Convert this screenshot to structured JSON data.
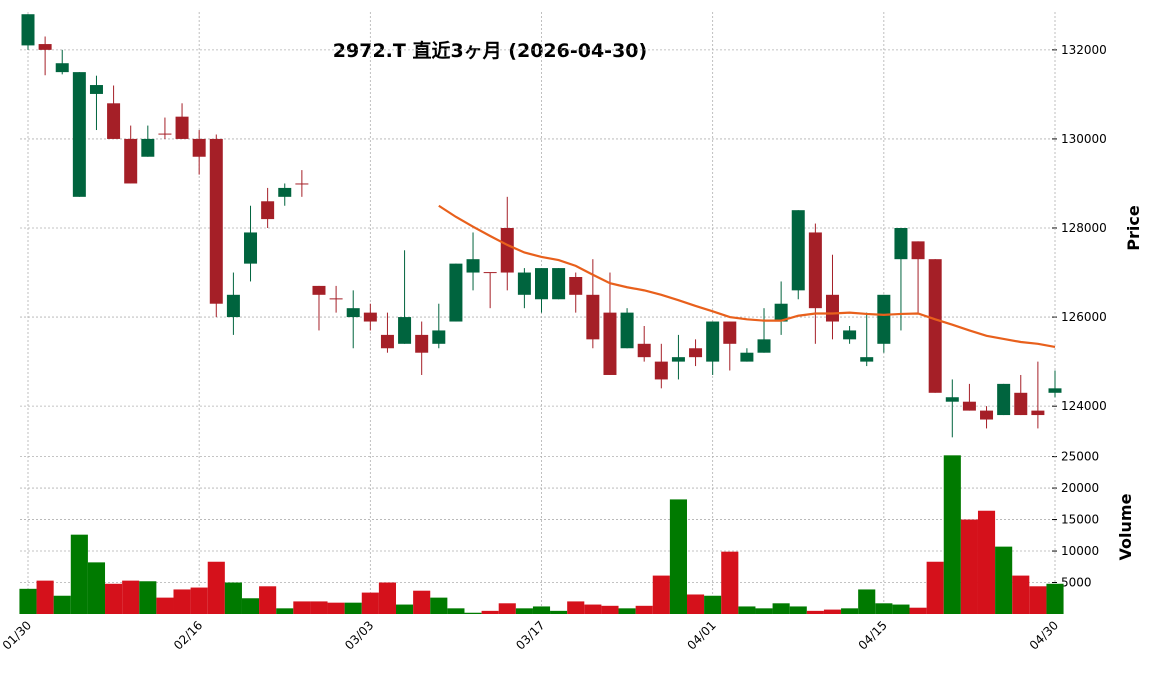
{
  "chart_data": {
    "type": "candlestick",
    "title": "2972.T 直近3ヶ月 (2026-04-30)",
    "ylabel": "Price",
    "y2label": "Volume",
    "categories": [
      "01/30",
      null,
      null,
      null,
      null,
      null,
      null,
      null,
      null,
      null,
      "02/16",
      null,
      null,
      null,
      null,
      null,
      null,
      null,
      null,
      null,
      "03/03",
      null,
      null,
      null,
      null,
      null,
      null,
      null,
      null,
      null,
      "03/17",
      null,
      null,
      null,
      null,
      null,
      null,
      null,
      null,
      null,
      "04/01",
      null,
      null,
      null,
      null,
      null,
      null,
      null,
      null,
      null,
      "04/15",
      null,
      null,
      null,
      null,
      null,
      null,
      null,
      null,
      null,
      "04/30"
    ],
    "open": [
      132100,
      132130,
      131500,
      128700,
      131010,
      130800,
      130000,
      129600,
      130120,
      130500,
      130000,
      130000,
      126000,
      127200,
      128600,
      128700,
      129000,
      126700,
      126420,
      126000,
      126100,
      125600,
      125400,
      125600,
      125400,
      125900,
      127000,
      127010,
      128000,
      126500,
      126400,
      126400,
      126900,
      126500,
      126100,
      125300,
      125400,
      125000,
      125000,
      125300,
      125000,
      125900,
      125000,
      125200,
      125900,
      126600,
      127900,
      126500,
      125500,
      125000,
      125400,
      127300,
      127700,
      127300,
      124100,
      124100,
      123900,
      123800,
      124300,
      123900,
      124300
    ],
    "high": [
      132800,
      132300,
      132000,
      131500,
      131420,
      131200,
      130300,
      130300,
      130480,
      130800,
      130200,
      130100,
      127000,
      128500,
      128900,
      129000,
      129300,
      126700,
      126700,
      126600,
      126300,
      126100,
      127500,
      125900,
      126300,
      127200,
      127900,
      127000,
      128700,
      127100,
      127100,
      127100,
      127000,
      127300,
      127000,
      126200,
      125800,
      125400,
      125600,
      125500,
      125900,
      125900,
      125300,
      126200,
      126800,
      128400,
      128100,
      127400,
      125800,
      126100,
      126500,
      128000,
      127700,
      127300,
      124600,
      124500,
      124000,
      124500,
      124700,
      125000,
      124800
    ],
    "low": [
      132000,
      131430,
      131450,
      128700,
      130200,
      130000,
      129000,
      129600,
      130000,
      130000,
      129200,
      126000,
      125600,
      126800,
      128000,
      128500,
      128700,
      125700,
      126100,
      125300,
      125700,
      125200,
      125400,
      124700,
      125300,
      125900,
      126600,
      126200,
      126600,
      126200,
      126100,
      126400,
      126100,
      125300,
      124700,
      125300,
      125000,
      124400,
      124600,
      124900,
      124700,
      124800,
      125000,
      125200,
      125600,
      126400,
      125400,
      125500,
      125400,
      124900,
      125200,
      125700,
      126100,
      124300,
      123300,
      123900,
      123500,
      123800,
      123800,
      123500,
      124200
    ],
    "close": [
      132800,
      132000,
      131700,
      131500,
      131210,
      130000,
      129000,
      130000,
      130100,
      130000,
      129600,
      126300,
      126500,
      127900,
      128200,
      128900,
      128990,
      126500,
      126400,
      126200,
      125900,
      125300,
      126000,
      125200,
      125700,
      127200,
      127300,
      127000,
      127000,
      127000,
      127100,
      127100,
      126500,
      125500,
      124700,
      126100,
      125100,
      124600,
      125100,
      125100,
      125900,
      125400,
      125200,
      125500,
      126300,
      128400,
      126200,
      125900,
      125700,
      125100,
      126500,
      128000,
      127300,
      124300,
      124200,
      123900,
      123700,
      124500,
      123800,
      123800,
      124400
    ],
    "ma": [
      null,
      null,
      null,
      null,
      null,
      null,
      null,
      null,
      null,
      null,
      null,
      null,
      null,
      null,
      null,
      null,
      null,
      null,
      null,
      null,
      null,
      null,
      null,
      null,
      128500,
      128250,
      128030,
      127820,
      127620,
      127450,
      127350,
      127280,
      127150,
      126950,
      126760,
      126670,
      126600,
      126500,
      126380,
      126250,
      126130,
      126000,
      125950,
      125920,
      125920,
      126030,
      126080,
      126080,
      126100,
      126070,
      126050,
      126070,
      126080,
      125950,
      125830,
      125700,
      125580,
      125510,
      125440,
      125400,
      125330
    ],
    "volume": [
      4000,
      5300,
      2900,
      12600,
      8200,
      4800,
      5300,
      5200,
      2600,
      3900,
      4200,
      8300,
      5000,
      2500,
      4400,
      900,
      2000,
      2000,
      1800,
      1800,
      3400,
      5000,
      1500,
      3700,
      2600,
      900,
      200,
      500,
      1700,
      900,
      1200,
      500,
      2000,
      1500,
      1300,
      900,
      1300,
      6100,
      18200,
      3100,
      2900,
      9900,
      1200,
      900,
      1700,
      1200,
      500,
      700,
      900,
      3900,
      1700,
      1500,
      1000,
      8300,
      25200,
      15000,
      16400,
      10700,
      6100,
      4400,
      4800
    ],
    "up_color": "#00643e",
    "down_color": "#a51f27",
    "ma_color": "#e8601c",
    "volume_up_color": "#007a00",
    "volume_down_color": "#d5111b",
    "ylim": [
      123240,
      132850
    ],
    "yticks": [
      124000,
      126000,
      128000,
      130000,
      132000
    ],
    "y2lim": [
      0,
      27000
    ],
    "y2ticks": [
      5000,
      10000,
      15000,
      20000,
      25000
    ],
    "grid": true
  }
}
